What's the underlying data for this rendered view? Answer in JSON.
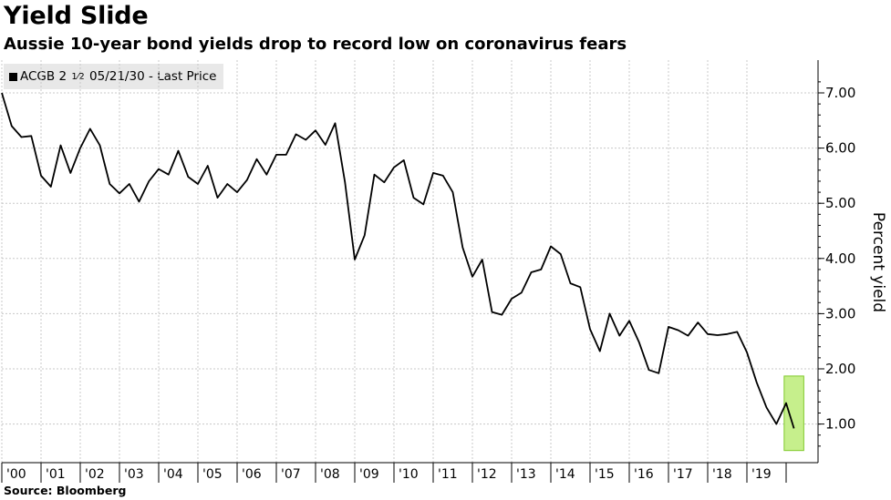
{
  "title": "Yield Slide",
  "subtitle": "Aussie 10-year bond yields drop to record low on coronavirus fears",
  "source": "Source: Bloomberg",
  "legend": {
    "label_pre": "ACGB 2",
    "label_frac": "1⁄2",
    "label_post": "05/21/30 - Last Price"
  },
  "colors": {
    "line": "#000000",
    "highlight_fill": "#c6ef8c",
    "highlight_stroke": "#7fc92a",
    "grid": "#c8c8c8"
  },
  "chart_data": {
    "type": "line",
    "title": "Yield Slide",
    "subtitle": "Aussie 10-year bond yields drop to record low on coronavirus fears",
    "xlabel": "",
    "ylabel": "Percent yield",
    "ylim": [
      0.5,
      7.5
    ],
    "xlim": [
      2000.0,
      2020.0
    ],
    "y_ticks": [
      1,
      2,
      3,
      4,
      5,
      6,
      7
    ],
    "y_tick_labels": [
      "1.00",
      "2.00",
      "3.00",
      "4.00",
      "5.00",
      "6.00",
      "7.00"
    ],
    "x_tick_labels": [
      "'00",
      "'01",
      "'02",
      "'03",
      "'04",
      "'05",
      "'06",
      "'07",
      "'08",
      "'09",
      "'10",
      "'11",
      "'12",
      "'13",
      "'14",
      "'15",
      "'16",
      "'17",
      "'18",
      "'19"
    ],
    "grid": true,
    "legend_position": "top-left",
    "series": [
      {
        "name": "ACGB 2 1⁄2 05/21/30 - Last Price",
        "x": [
          2000.0,
          2000.25,
          2000.5,
          2000.75,
          2001.0,
          2001.25,
          2001.5,
          2001.75,
          2002.0,
          2002.25,
          2002.5,
          2002.75,
          2003.0,
          2003.25,
          2003.5,
          2003.75,
          2004.0,
          2004.25,
          2004.5,
          2004.75,
          2005.0,
          2005.25,
          2005.5,
          2005.75,
          2006.0,
          2006.25,
          2006.5,
          2006.75,
          2007.0,
          2007.25,
          2007.5,
          2007.75,
          2008.0,
          2008.25,
          2008.5,
          2008.75,
          2009.0,
          2009.25,
          2009.5,
          2009.75,
          2010.0,
          2010.25,
          2010.5,
          2010.75,
          2011.0,
          2011.25,
          2011.5,
          2011.75,
          2012.0,
          2012.25,
          2012.5,
          2012.75,
          2013.0,
          2013.25,
          2013.5,
          2013.75,
          2014.0,
          2014.25,
          2014.5,
          2014.75,
          2015.0,
          2015.25,
          2015.5,
          2015.75,
          2016.0,
          2016.25,
          2016.5,
          2016.75,
          2017.0,
          2017.25,
          2017.5,
          2017.75,
          2018.0,
          2018.25,
          2018.5,
          2018.75,
          2019.0,
          2019.25,
          2019.5,
          2019.75,
          2020.0,
          2020.2
        ],
        "values": [
          7.0,
          6.4,
          6.2,
          6.22,
          5.5,
          5.3,
          6.05,
          5.55,
          6.0,
          6.35,
          6.05,
          5.35,
          5.18,
          5.35,
          5.03,
          5.4,
          5.62,
          5.52,
          5.95,
          5.48,
          5.35,
          5.68,
          5.1,
          5.35,
          5.2,
          5.42,
          5.8,
          5.52,
          5.88,
          5.88,
          6.25,
          6.15,
          6.32,
          6.06,
          6.45,
          5.38,
          3.98,
          4.42,
          5.52,
          5.38,
          5.65,
          5.78,
          5.1,
          4.98,
          5.55,
          5.5,
          5.2,
          4.2,
          3.67,
          3.98,
          3.03,
          2.98,
          3.27,
          3.38,
          3.75,
          3.8,
          4.22,
          4.08,
          3.55,
          3.48,
          2.72,
          2.32,
          3.0,
          2.6,
          2.87,
          2.48,
          1.98,
          1.92,
          2.76,
          2.7,
          2.6,
          2.84,
          2.63,
          2.61,
          2.63,
          2.67,
          2.3,
          1.75,
          1.3,
          1.0,
          1.38,
          0.92
        ]
      }
    ],
    "highlight": {
      "x_range": [
        2019.95,
        2020.45
      ],
      "y_range": [
        0.52,
        1.87
      ]
    }
  }
}
